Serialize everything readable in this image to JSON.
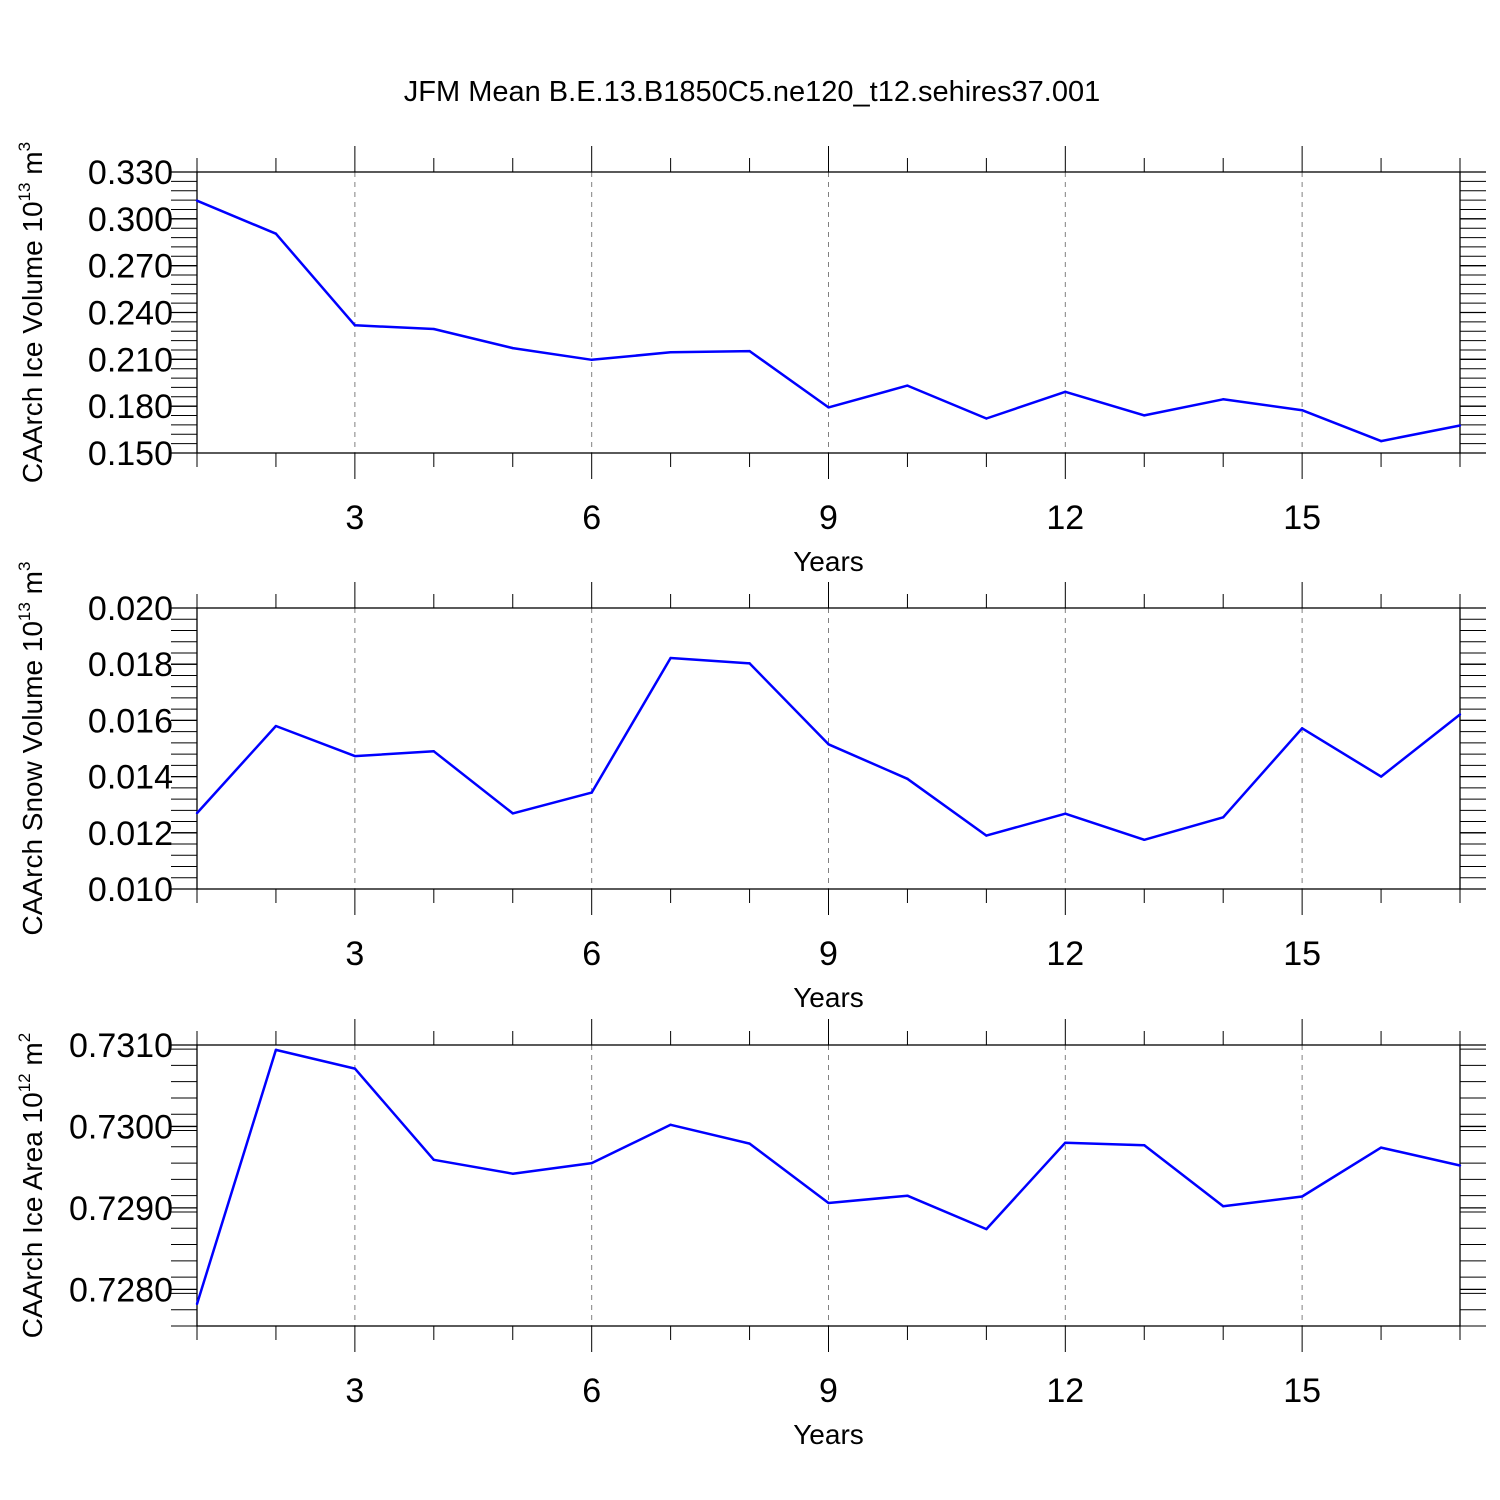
{
  "chart_data": {
    "title": "JFM Mean B.E.13.B1850C5.ne120_t12.sehires37.001",
    "colors": {
      "line": "#0000ff",
      "axis": "#000000",
      "grid": "#808080"
    },
    "panels": [
      {
        "type": "line",
        "xlabel": "Years",
        "ylabel": {
          "main": "CAArch Ice Volume 10",
          "sup1": "13",
          "unit": " m",
          "sup2": "3"
        },
        "xlim": [
          1,
          17
        ],
        "ylim": [
          0.15,
          0.33
        ],
        "xticks": [
          3,
          6,
          9,
          12,
          15
        ],
        "xtick_labels": [
          "3",
          "6",
          "9",
          "12",
          "15"
        ],
        "yticks": [
          0.15,
          0.18,
          0.21,
          0.24,
          0.27,
          0.3,
          0.33
        ],
        "ytick_labels": [
          "0.150",
          "0.180",
          "0.210",
          "0.240",
          "0.270",
          "0.300",
          "0.330"
        ],
        "y_minor_step": 0.006,
        "x": [
          1,
          2,
          3,
          4,
          5,
          6,
          7,
          8,
          9,
          10,
          11,
          12,
          13,
          14,
          15,
          16,
          17
        ],
        "values": [
          0.3116,
          0.2905,
          0.2318,
          0.2294,
          0.2172,
          0.2097,
          0.2145,
          0.2153,
          0.1792,
          0.1932,
          0.1721,
          0.1892,
          0.1741,
          0.1844,
          0.1774,
          0.1576,
          0.1676
        ]
      },
      {
        "type": "line",
        "xlabel": "Years",
        "ylabel": {
          "main": "CAArch Snow Volume 10",
          "sup1": "13",
          "unit": " m",
          "sup2": "3"
        },
        "xlim": [
          1,
          17
        ],
        "ylim": [
          0.01,
          0.02
        ],
        "xticks": [
          3,
          6,
          9,
          12,
          15
        ],
        "xtick_labels": [
          "3",
          "6",
          "9",
          "12",
          "15"
        ],
        "yticks": [
          0.01,
          0.012,
          0.014,
          0.016,
          0.018,
          0.02
        ],
        "ytick_labels": [
          "0.010",
          "0.012",
          "0.014",
          "0.016",
          "0.018",
          "0.020"
        ],
        "y_minor_step": 0.0004,
        "x": [
          1,
          2,
          3,
          4,
          5,
          6,
          7,
          8,
          9,
          10,
          11,
          12,
          13,
          14,
          15,
          16,
          17
        ],
        "values": [
          0.0127,
          0.0158,
          0.01473,
          0.0149,
          0.01269,
          0.01343,
          0.01822,
          0.01803,
          0.01515,
          0.01392,
          0.0119,
          0.01268,
          0.01175,
          0.01255,
          0.01572,
          0.014,
          0.01621
        ]
      },
      {
        "type": "line",
        "xlabel": "Years",
        "ylabel": {
          "main": "CAArch Ice Area 10",
          "sup1": "12",
          "unit": " m",
          "sup2": "2"
        },
        "xlim": [
          1,
          17
        ],
        "ylim": [
          0.72755,
          0.731
        ],
        "xticks": [
          3,
          6,
          9,
          12,
          15
        ],
        "xtick_labels": [
          "3",
          "6",
          "9",
          "12",
          "15"
        ],
        "yticks": [
          0.728,
          0.729,
          0.73,
          0.731
        ],
        "ytick_labels": [
          "0.7280",
          "0.7290",
          "0.7300",
          "0.7310"
        ],
        "y_minor_step": 0.0002,
        "x": [
          1,
          2,
          3,
          4,
          5,
          6,
          7,
          8,
          9,
          10,
          11,
          12,
          13,
          14,
          15,
          16,
          17
        ],
        "values": [
          0.72782,
          0.73094,
          0.73071,
          0.72959,
          0.72942,
          0.72955,
          0.73002,
          0.72979,
          0.72906,
          0.72915,
          0.72874,
          0.7298,
          0.72977,
          0.72902,
          0.72914,
          0.72974,
          0.72952
        ]
      }
    ]
  }
}
